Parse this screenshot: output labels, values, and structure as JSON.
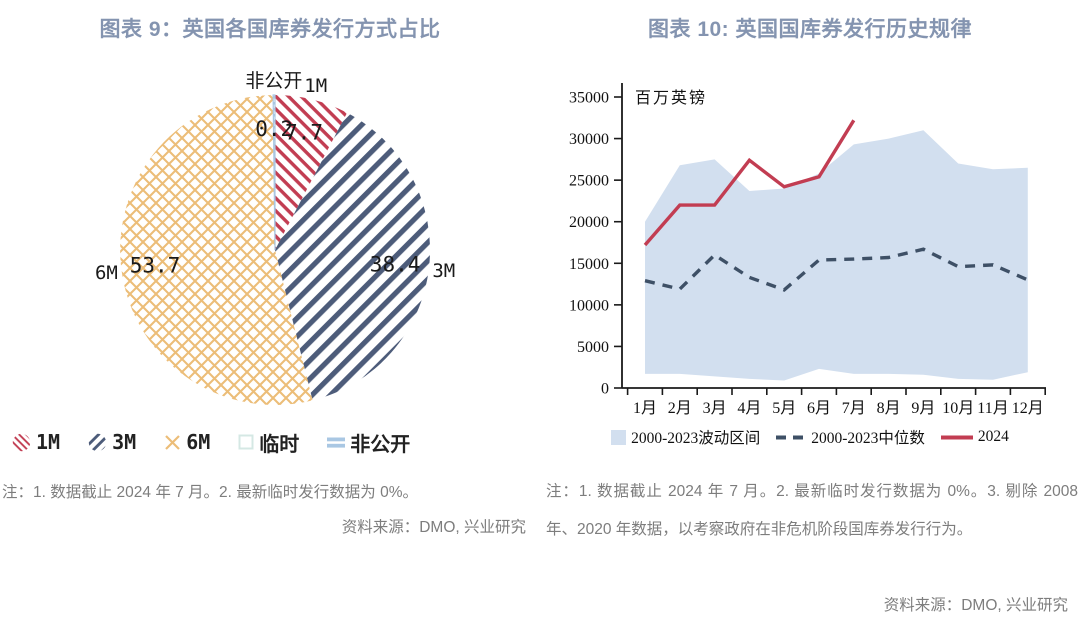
{
  "left_panel": {
    "title": "图表 9：英国各国库券发行方式占比",
    "note": "注：1. 数据截止 2024 年 7 月。2. 最新临时发行数据为 0%。",
    "source": "资料来源：DMO, 兴业研究"
  },
  "right_panel": {
    "title": "图表 10: 英国国库券发行历史规律",
    "note": "注：1. 数据截止 2024 年 7 月。2. 最新临时发行数据为 0%。3. 剔除 2008 年、2020 年数据，以考察政府在非危机阶段国库券发行行为。",
    "source": "资料来源：DMO, 兴业研究"
  },
  "colors": {
    "title": "#8494b0",
    "note_gray": "#7d7d7d",
    "axis": "#1a1a1a",
    "red": "#c23d52",
    "slate_blue": "#4d5c7a",
    "median_blue": "#3e5066",
    "orange": "#ecbd78",
    "band_blue": "#d2dfef",
    "light_blue": "#a9c7e3",
    "temp_mint": "#d5e8e4"
  },
  "chart_data": [
    {
      "type": "pie",
      "title": "图表 9：英国各国库券发行方式占比",
      "unit": "%",
      "start_at_top_clockwise": true,
      "slices": [
        {
          "label": "1M",
          "value": 7.7,
          "hatch": "diag-down",
          "color": "#c23d52"
        },
        {
          "label": "3M",
          "value": 38.4,
          "hatch": "diag-up",
          "color": "#4d5c7a"
        },
        {
          "label": "6M",
          "value": 53.7,
          "hatch": "crosshatch",
          "color": "#ecbd78"
        },
        {
          "label": "临时",
          "value": 0,
          "hatch": "square",
          "color": "#d5e8e4"
        },
        {
          "label": "非公开",
          "value": 0.2,
          "hatch": "horizontal",
          "color": "#a9c7e3"
        }
      ]
    },
    {
      "type": "line",
      "title": "图表 10: 英国国库券发行历史规律",
      "ylabel": "百万英镑",
      "xlabel": "",
      "ylim": [
        0,
        35000
      ],
      "ytick_step": 5000,
      "grid": false,
      "legend_position": "bottom",
      "categories": [
        "1月",
        "2月",
        "3月",
        "4月",
        "5月",
        "6月",
        "7月",
        "8月",
        "9月",
        "10月",
        "11月",
        "12月"
      ],
      "series": [
        {
          "name": "2000-2023波动区间",
          "kind": "band",
          "color": "#d2dfef",
          "upper": [
            20000,
            26800,
            27500,
            23700,
            24000,
            25800,
            29300,
            30000,
            31000,
            27000,
            26300,
            26500
          ],
          "lower": [
            1700,
            1700,
            1400,
            1100,
            900,
            2300,
            1700,
            1700,
            1600,
            1100,
            1000,
            1900
          ]
        },
        {
          "name": "2000-2023中位数",
          "kind": "dashed_line",
          "color": "#3e5066",
          "values": [
            12900,
            11900,
            16000,
            13300,
            11800,
            15400,
            15500,
            15700,
            16700,
            14600,
            14800,
            13000
          ]
        },
        {
          "name": "2024",
          "kind": "line",
          "color": "#c23d52",
          "values": [
            17200,
            22000,
            22000,
            27400,
            24200,
            25400,
            32200
          ]
        }
      ]
    }
  ]
}
